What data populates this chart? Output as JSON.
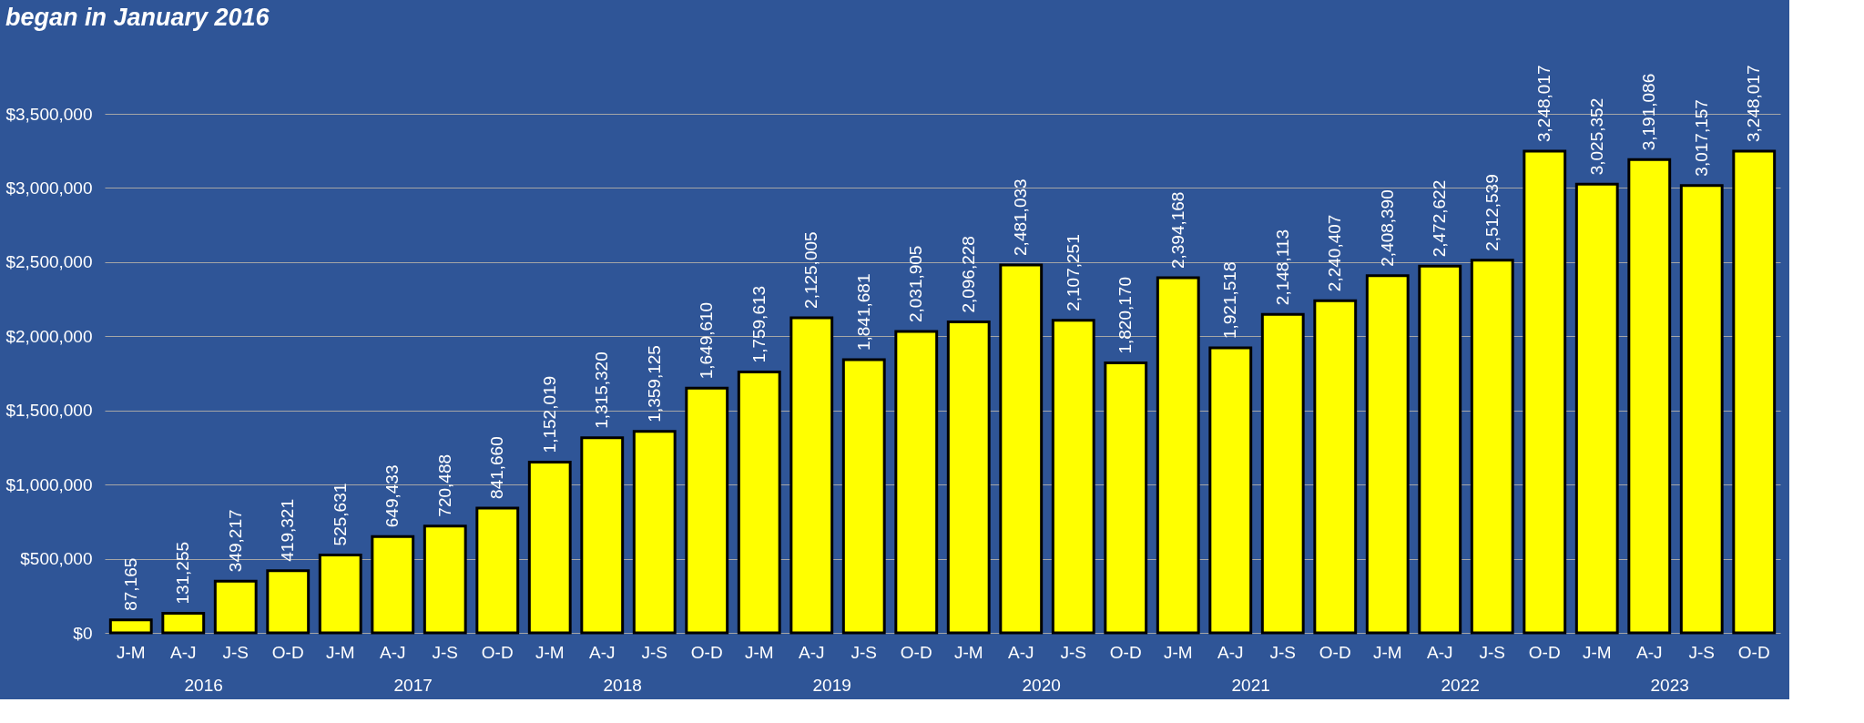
{
  "chart_data": {
    "type": "bar",
    "title": "began in January 2016",
    "categories": [
      "J-M",
      "A-J",
      "J-S",
      "O-D",
      "J-M",
      "A-J",
      "J-S",
      "O-D",
      "J-M",
      "A-J",
      "J-S",
      "O-D",
      "J-M",
      "A-J",
      "J-S",
      "O-D",
      "J-M",
      "A-J",
      "J-S",
      "O-D",
      "J-M",
      "A-J",
      "J-S",
      "O-D",
      "J-M",
      "A-J",
      "J-S",
      "O-D",
      "J-M",
      "A-J",
      "J-S",
      "O-D"
    ],
    "values": [
      87165,
      131255,
      349217,
      419321,
      525631,
      649433,
      720488,
      841660,
      1152019,
      1315320,
      1359125,
      1649610,
      1759613,
      2125005,
      1841681,
      2031905,
      2096228,
      2481033,
      2107251,
      1820170,
      2394168,
      1921518,
      2148113,
      2240407,
      2408390,
      2472622,
      2512539,
      3248017,
      3025352,
      3191086,
      3017157,
      3248017
    ],
    "value_labels": [
      "87,165",
      "131,255",
      "349,217",
      "419,321",
      "525,631",
      "649,433",
      "720,488",
      "841,660",
      "1,152,019",
      "1,315,320",
      "1,359,125",
      "1,649,610",
      "1,759,613",
      "2,125,005",
      "1,841,681",
      "2,031,905",
      "2,096,228",
      "2,481,033",
      "2,107,251",
      "1,820,170",
      "2,394,168",
      "1,921,518",
      "2,148,113",
      "2,240,407",
      "2,408,390",
      "2,472,622",
      "2,512,539",
      "3,248,017",
      "3,025,352",
      "3,191,086",
      "3,017,157",
      "3,248,017"
    ],
    "color": "#ffff00",
    "ylim": [
      0,
      3500000
    ],
    "yticks": [
      {
        "value": 0,
        "label": "$0"
      },
      {
        "value": 500000,
        "label": "$500,000"
      },
      {
        "value": 1000000,
        "label": "$1,000,000"
      },
      {
        "value": 1500000,
        "label": "$1,500,000"
      },
      {
        "value": 2000000,
        "label": "$2,000,000"
      },
      {
        "value": 2500000,
        "label": "$2,500,000"
      },
      {
        "value": 3000000,
        "label": "$3,000,000"
      },
      {
        "value": 3500000,
        "label": "$3,500,000"
      }
    ],
    "grid": "y",
    "annotations": [
      "2016",
      "2017",
      "2018",
      "2019",
      "2020",
      "2021",
      "2022",
      "2023"
    ]
  }
}
